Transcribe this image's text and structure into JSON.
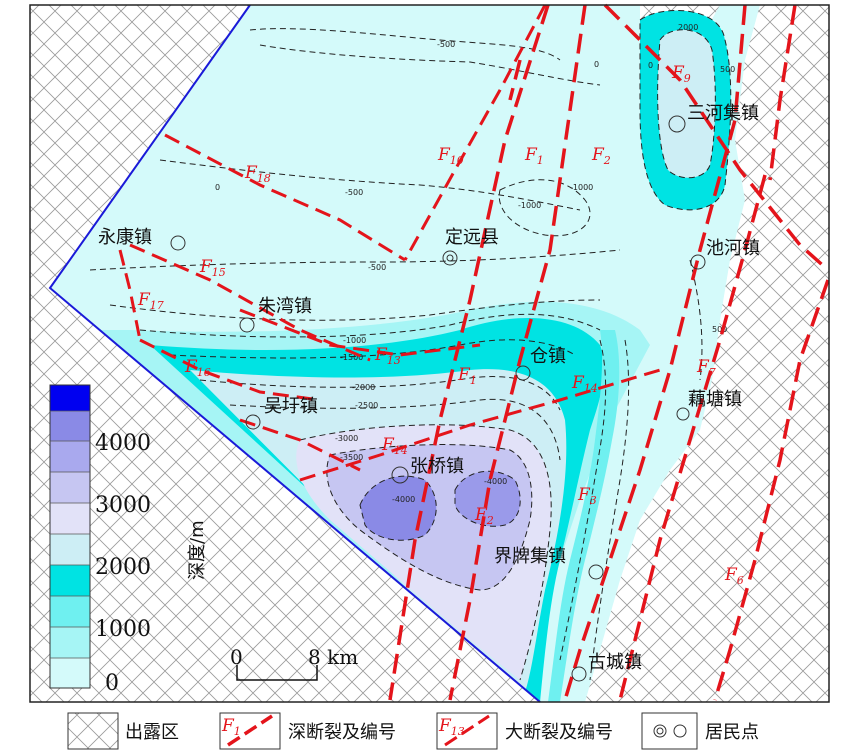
{
  "towns": [
    {
      "id": "yongkang",
      "name": "永康镇"
    },
    {
      "id": "zhuwan",
      "name": "朱湾镇"
    },
    {
      "id": "wuwei",
      "name": "吴圩镇"
    },
    {
      "id": "zhangqiao",
      "name": "张桥镇"
    },
    {
      "id": "dingyuan",
      "name": "定远县"
    },
    {
      "id": "cang",
      "name": "仓镇"
    },
    {
      "id": "sanheji",
      "name": "三河集镇"
    },
    {
      "id": "chihe",
      "name": "池河镇"
    },
    {
      "id": "outang",
      "name": "藕塘镇"
    },
    {
      "id": "jiepaiji",
      "name": "界牌集镇"
    },
    {
      "id": "gucheng",
      "name": "古城镇"
    }
  ],
  "faults": [
    {
      "id": "F1",
      "main": "F",
      "sub": "1",
      "kind": "deep"
    },
    {
      "id": "F2",
      "main": "F",
      "sub": "2",
      "kind": "deep"
    },
    {
      "id": "F3",
      "main": "F",
      "sub": "3",
      "kind": "deep"
    },
    {
      "id": "F6",
      "main": "F",
      "sub": "6",
      "kind": "deep"
    },
    {
      "id": "F7",
      "main": "F",
      "sub": "7",
      "kind": "deep"
    },
    {
      "id": "F9",
      "main": "F",
      "sub": "9",
      "kind": "deep"
    },
    {
      "id": "F10",
      "main": "F",
      "sub": "10",
      "kind": "major"
    },
    {
      "id": "F13",
      "main": "F",
      "sub": "13",
      "kind": "major"
    },
    {
      "id": "F14",
      "main": "F",
      "sub": "14",
      "kind": "major"
    },
    {
      "id": "F15",
      "main": "F",
      "sub": "15",
      "kind": "major"
    },
    {
      "id": "F16",
      "main": "F",
      "sub": "16",
      "kind": "major"
    },
    {
      "id": "F17",
      "main": "F",
      "sub": "17",
      "kind": "major"
    },
    {
      "id": "F18",
      "main": "F",
      "sub": "18",
      "kind": "major"
    }
  ],
  "contour_labels": [
    "-500",
    "0",
    "-500",
    "0",
    "500",
    "-1000",
    "-1000",
    "-500",
    "-1000",
    "-1500",
    "-2000",
    "-2500",
    "-3000",
    "-3500",
    "-4000",
    "-4000",
    "2000",
    "0",
    "500"
  ],
  "colorbar": {
    "title": "深度/m",
    "ticks": [
      "4000",
      "3000",
      "2000",
      "1000",
      "0"
    ],
    "colors": [
      "#0000f0",
      "#8a8ae6",
      "#a9a9ee",
      "#c6c6f2",
      "#e2e2f8",
      "#cdeef5",
      "#00e3e3",
      "#6ff0f0",
      "#a6f5f5",
      "#d4fafa"
    ]
  },
  "scale": {
    "zero": "0",
    "end": "8 km"
  },
  "legend": {
    "outcrop": "出露区",
    "deep_fault": "深断裂及编号",
    "deep_fault_sample": {
      "main": "F",
      "sub": "1"
    },
    "major_fault": "大断裂及编号",
    "major_fault_sample": {
      "main": "F",
      "sub": "13"
    },
    "settlement": "居民点"
  },
  "colors": {
    "fault": "#e4141b",
    "boundary": "#1a1ad8",
    "shallow": "#d4fafa",
    "cyan": "#00e3e3",
    "purple_deep": "#8a8ae6"
  }
}
